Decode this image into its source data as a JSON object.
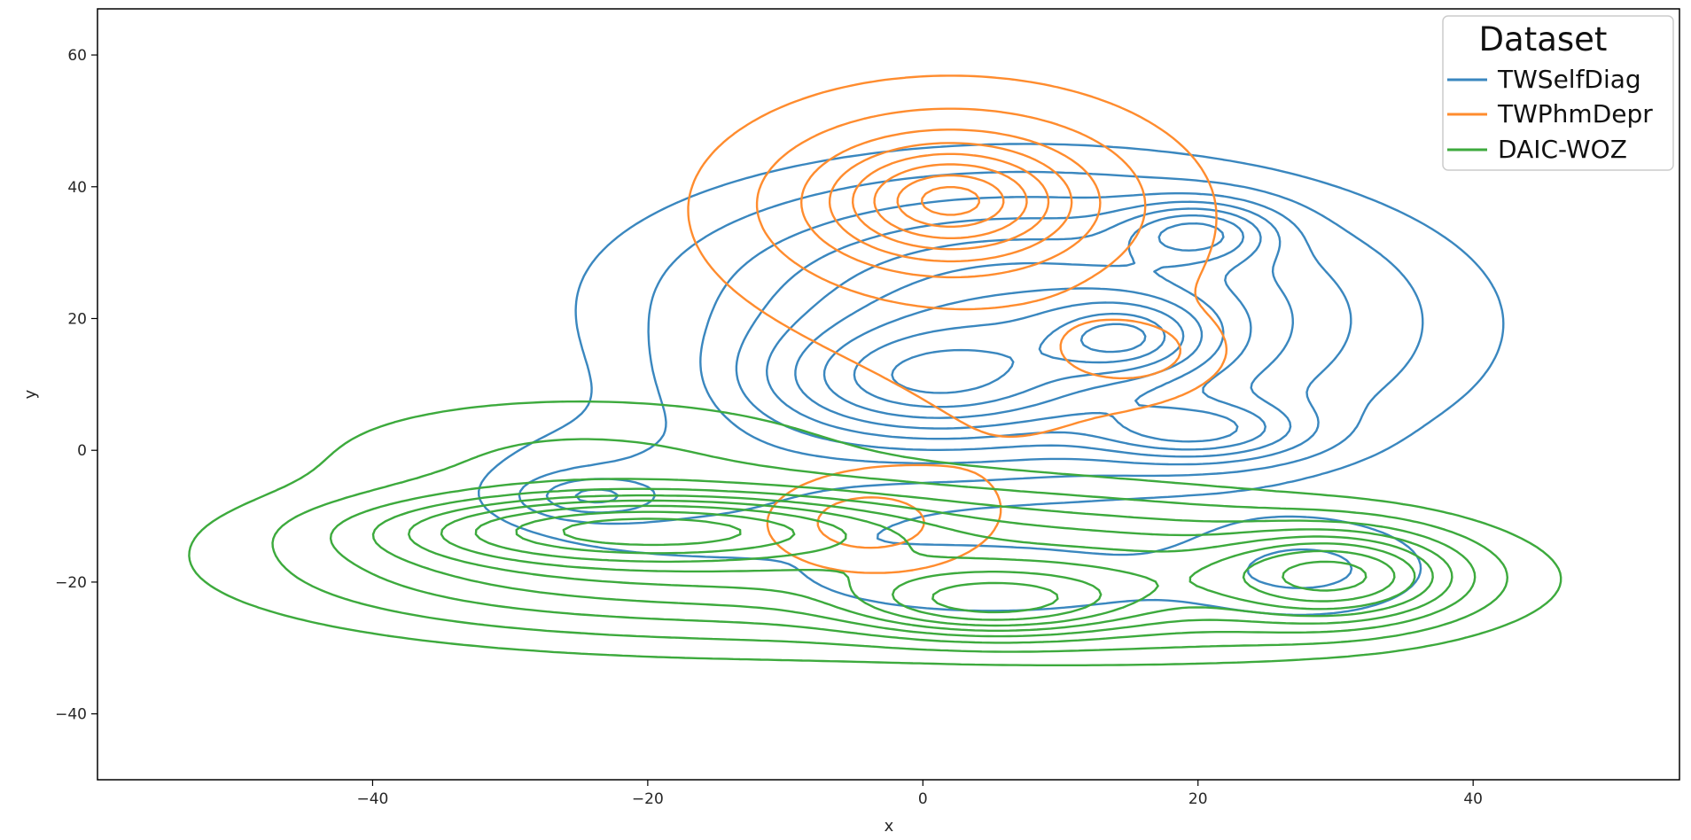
{
  "chart_data": {
    "type": "kde-contour",
    "title": "",
    "xlabel": "x",
    "ylabel": "y",
    "xlim": [
      -60,
      55
    ],
    "ylim": [
      -50,
      67
    ],
    "x_ticks": [
      -40,
      -20,
      0,
      20,
      40
    ],
    "y_ticks": [
      -40,
      -20,
      0,
      20,
      40,
      60
    ],
    "grid": false,
    "legend": {
      "title": "Dataset",
      "position": "top-right",
      "entries": [
        {
          "name": "TWSelfDiag",
          "color": "#3a87bf"
        },
        {
          "name": "TWPhmDepr",
          "color": "#ff8c2e"
        },
        {
          "name": "DAIC-WOZ",
          "color": "#3daa3d"
        }
      ]
    },
    "series": [
      {
        "name": "TWSelfDiag",
        "color": "#3a87bf",
        "level_count": 10,
        "density_peaks": [
          {
            "x": 20,
            "y": 33
          },
          {
            "x": 15,
            "y": 17
          },
          {
            "x": 0,
            "y": 10
          },
          {
            "x": 20,
            "y": 3
          },
          {
            "x": -24,
            "y": -7
          }
        ],
        "outer_extent": {
          "x": [
            -32,
            37
          ],
          "y": [
            -25,
            44
          ]
        }
      },
      {
        "name": "TWPhmDepr",
        "color": "#ff8c2e",
        "level_count": 8,
        "density_peaks": [
          {
            "x": 2,
            "y": 38
          },
          {
            "x": 15,
            "y": 15
          },
          {
            "x": -4,
            "y": -11
          }
        ],
        "outer_extent": {
          "x": [
            -13,
            20
          ],
          "y": [
            -24,
            58
          ]
        }
      },
      {
        "name": "DAIC-WOZ",
        "color": "#3daa3d",
        "level_count": 9,
        "density_peaks": [
          {
            "x": -20,
            "y": -12
          },
          {
            "x": 5,
            "y": -23
          },
          {
            "x": 30,
            "y": -19
          }
        ],
        "outer_extent": {
          "x": [
            -50,
            46
          ],
          "y": [
            -37,
            13
          ]
        }
      }
    ]
  }
}
